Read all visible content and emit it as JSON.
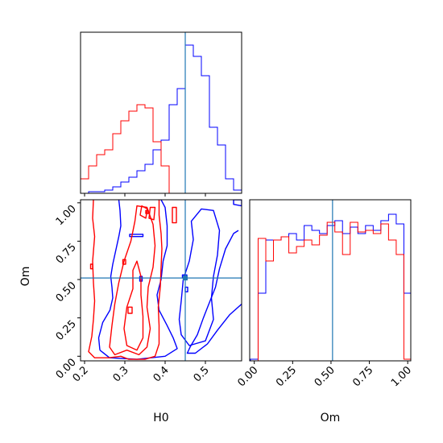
{
  "chart_data": {
    "type": "corner",
    "truth": {
      "H0": 0.45,
      "Om": 0.51
    },
    "colors": {
      "series_a": "#0000ff",
      "series_b": "#ff0000",
      "truth": "#1f77b4"
    },
    "parameters": [
      "H0",
      "Om"
    ],
    "axes": {
      "H0": {
        "xlim": [
          0.19,
          0.59
        ],
        "ticks": [
          0.2,
          0.3,
          0.4,
          0.5
        ],
        "tick_labels": [
          "0.2",
          "0.3",
          "0.4",
          "0.5"
        ],
        "xlabel": "H0"
      },
      "Om": {
        "xlim": [
          -0.03,
          1.02
        ],
        "ticks": [
          0.0,
          0.25,
          0.5,
          0.75,
          1.0
        ],
        "tick_labels": [
          "0.00",
          "0.25",
          "0.50",
          "0.75",
          "1.00"
        ],
        "xlabel": "Om"
      },
      "Om_2d": {
        "ylim": [
          -0.03,
          1.02
        ],
        "ticks": [
          0.0,
          0.25,
          0.5,
          0.75,
          1.0
        ],
        "tick_labels": [
          "0.00",
          "0.25",
          "0.50",
          "0.75",
          "1.00"
        ],
        "ylabel": "Om"
      }
    },
    "hist_H0": {
      "bin_edges": [
        0.19,
        0.21,
        0.23,
        0.25,
        0.27,
        0.29,
        0.31,
        0.33,
        0.35,
        0.37,
        0.39,
        0.41,
        0.43,
        0.45,
        0.47,
        0.49,
        0.51,
        0.53,
        0.55,
        0.57,
        0.59
      ],
      "series": [
        {
          "color": "blue",
          "values": [
            0.0,
            0.01,
            0.01,
            0.02,
            0.04,
            0.07,
            0.1,
            0.14,
            0.18,
            0.27,
            0.33,
            0.55,
            0.65,
            0.92,
            0.85,
            0.73,
            0.41,
            0.3,
            0.09,
            0.02
          ]
        },
        {
          "color": "red",
          "values": [
            0.09,
            0.17,
            0.24,
            0.27,
            0.37,
            0.45,
            0.51,
            0.55,
            0.53,
            0.32,
            0.17,
            0.0,
            0.0,
            0.0,
            0.0,
            0.0,
            0.0,
            0.0,
            0.0,
            0.0
          ]
        }
      ]
    },
    "hist_Om": {
      "bin_edges": [
        -0.025,
        0.025,
        0.075,
        0.125,
        0.175,
        0.225,
        0.275,
        0.325,
        0.375,
        0.425,
        0.475,
        0.525,
        0.575,
        0.625,
        0.675,
        0.725,
        0.775,
        0.825,
        0.875,
        0.925,
        0.975,
        1.025
      ],
      "series": [
        {
          "color": "blue",
          "values": [
            0.01,
            0.42,
            0.75,
            0.75,
            0.77,
            0.79,
            0.75,
            0.84,
            0.81,
            0.79,
            0.84,
            0.87,
            0.79,
            0.83,
            0.79,
            0.84,
            0.81,
            0.87,
            0.91,
            0.85,
            0.42
          ]
        },
        {
          "color": "red",
          "values": [
            0.0,
            0.76,
            0.62,
            0.75,
            0.77,
            0.67,
            0.71,
            0.75,
            0.72,
            0.78,
            0.86,
            0.8,
            0.66,
            0.86,
            0.8,
            0.81,
            0.79,
            0.85,
            0.75,
            0.66,
            0.01
          ]
        }
      ]
    },
    "contours": [
      {
        "color": "blue",
        "lines": [
          {
            "points": [
              [
                0.238,
                0.04
              ],
              [
                0.262,
                -0.01
              ],
              [
                0.33,
                -0.02
              ],
              [
                0.4,
                0.0
              ],
              [
                0.43,
                0.05
              ],
              [
                0.42,
                0.12
              ],
              [
                0.405,
                0.2
              ],
              [
                0.385,
                0.3
              ],
              [
                0.38,
                0.4
              ],
              [
                0.39,
                0.5
              ],
              [
                0.395,
                0.62
              ],
              [
                0.405,
                0.72
              ],
              [
                0.405,
                0.85
              ],
              [
                0.4,
                0.97
              ],
              [
                0.39,
                1.02
              ]
            ],
            "closed": false
          },
          {
            "points": [
              [
                0.285,
                1.02
              ],
              [
                0.288,
                0.95
              ],
              [
                0.29,
                0.85
              ],
              [
                0.285,
                0.78
              ],
              [
                0.28,
                0.72
              ],
              [
                0.27,
                0.6
              ],
              [
                0.265,
                0.52
              ],
              [
                0.268,
                0.45
              ],
              [
                0.27,
                0.38
              ],
              [
                0.263,
                0.3
              ],
              [
                0.245,
                0.22
              ],
              [
                0.235,
                0.12
              ],
              [
                0.238,
                0.04
              ]
            ],
            "closed": false
          },
          {
            "points": [
              [
                0.582,
                0.82
              ],
              [
                0.57,
                0.8
              ],
              [
                0.55,
                0.7
              ],
              [
                0.535,
                0.57
              ],
              [
                0.525,
                0.45
              ],
              [
                0.51,
                0.35
              ],
              [
                0.495,
                0.25
              ],
              [
                0.48,
                0.14
              ],
              [
                0.462,
                0.06
              ],
              [
                0.455,
                0.02
              ],
              [
                0.475,
                0.02
              ],
              [
                0.505,
                0.08
              ],
              [
                0.53,
                0.17
              ],
              [
                0.56,
                0.27
              ],
              [
                0.59,
                0.34
              ]
            ],
            "closed": false
          },
          {
            "points": [
              [
                0.44,
                0.14
              ],
              [
                0.46,
                0.07
              ],
              [
                0.5,
                0.1
              ],
              [
                0.52,
                0.24
              ],
              [
                0.515,
                0.38
              ],
              [
                0.52,
                0.52
              ],
              [
                0.53,
                0.66
              ],
              [
                0.535,
                0.82
              ],
              [
                0.52,
                0.95
              ],
              [
                0.49,
                0.96
              ],
              [
                0.465,
                0.88
              ],
              [
                0.47,
                0.76
              ],
              [
                0.46,
                0.62
              ],
              [
                0.445,
                0.5
              ],
              [
                0.44,
                0.36
              ],
              [
                0.435,
                0.24
              ]
            ],
            "closed": true
          },
          {
            "points": [
              [
                0.57,
                0.99
              ],
              [
                0.59,
                0.98
              ],
              [
                0.59,
                1.02
              ],
              [
                0.57,
                1.02
              ]
            ],
            "closed": true
          },
          {
            "points": [
              [
                0.443,
                0.51
              ],
              [
                0.454,
                0.51
              ],
              [
                0.454,
                0.53
              ],
              [
                0.443,
                0.53
              ]
            ],
            "closed": true
          },
          {
            "points": [
              [
                0.337,
                0.49
              ],
              [
                0.343,
                0.49
              ],
              [
                0.343,
                0.52
              ],
              [
                0.337,
                0.52
              ]
            ],
            "closed": true
          },
          {
            "points": [
              [
                0.45,
                0.42
              ],
              [
                0.456,
                0.42
              ],
              [
                0.456,
                0.45
              ],
              [
                0.45,
                0.45
              ]
            ],
            "closed": true
          },
          {
            "points": [
              [
                0.312,
                0.78
              ],
              [
                0.345,
                0.78
              ],
              [
                0.345,
                0.795
              ],
              [
                0.312,
                0.795
              ]
            ],
            "closed": true
          }
        ]
      },
      {
        "color": "red",
        "lines": [
          {
            "points": [
              [
                0.222,
                1.02
              ],
              [
                0.22,
                0.9
              ],
              [
                0.225,
                0.78
              ],
              [
                0.22,
                0.62
              ],
              [
                0.222,
                0.48
              ],
              [
                0.225,
                0.36
              ],
              [
                0.222,
                0.24
              ],
              [
                0.218,
                0.13
              ],
              [
                0.21,
                0.03
              ],
              [
                0.225,
                -0.01
              ],
              [
                0.26,
                -0.01
              ],
              [
                0.29,
                0.0
              ],
              [
                0.31,
                -0.02
              ],
              [
                0.35,
                -0.02
              ],
              [
                0.375,
                0.0
              ],
              [
                0.385,
                0.08
              ],
              [
                0.385,
                0.2
              ],
              [
                0.383,
                0.32
              ],
              [
                0.388,
                0.45
              ],
              [
                0.39,
                0.58
              ],
              [
                0.392,
                0.7
              ],
              [
                0.39,
                0.8
              ],
              [
                0.385,
                0.92
              ],
              [
                0.385,
                1.02
              ]
            ],
            "closed": false
          },
          {
            "points": [
              [
                0.262,
                0.06
              ],
              [
                0.275,
                0.01
              ],
              [
                0.305,
                0.04
              ],
              [
                0.335,
                0.01
              ],
              [
                0.355,
                0.06
              ],
              [
                0.363,
                0.18
              ],
              [
                0.355,
                0.32
              ],
              [
                0.358,
                0.45
              ],
              [
                0.37,
                0.58
              ],
              [
                0.375,
                0.72
              ],
              [
                0.37,
                0.86
              ],
              [
                0.355,
                0.97
              ],
              [
                0.33,
                0.98
              ],
              [
                0.325,
                0.88
              ],
              [
                0.315,
                0.75
              ],
              [
                0.298,
                0.62
              ],
              [
                0.285,
                0.48
              ],
              [
                0.275,
                0.34
              ],
              [
                0.268,
                0.2
              ]
            ],
            "closed": true
          },
          {
            "points": [
              [
                0.305,
                0.07
              ],
              [
                0.33,
                0.04
              ],
              [
                0.345,
                0.12
              ],
              [
                0.345,
                0.26
              ],
              [
                0.34,
                0.4
              ],
              [
                0.34,
                0.52
              ],
              [
                0.33,
                0.62
              ],
              [
                0.32,
                0.56
              ],
              [
                0.32,
                0.44
              ],
              [
                0.305,
                0.32
              ],
              [
                0.298,
                0.18
              ]
            ],
            "closed": true
          },
          {
            "points": [
              [
                0.338,
                0.92
              ],
              [
                0.352,
                0.9
              ],
              [
                0.356,
                0.96
              ],
              [
                0.342,
                0.98
              ]
            ],
            "closed": true
          },
          {
            "points": [
              [
                0.36,
                0.9
              ],
              [
                0.372,
                0.89
              ],
              [
                0.375,
                0.97
              ],
              [
                0.363,
                0.97
              ]
            ],
            "closed": true
          },
          {
            "points": [
              [
                0.418,
                0.87
              ],
              [
                0.428,
                0.87
              ],
              [
                0.428,
                0.97
              ],
              [
                0.418,
                0.97
              ]
            ],
            "closed": true
          },
          {
            "points": [
              [
                0.295,
                0.6
              ],
              [
                0.302,
                0.6
              ],
              [
                0.302,
                0.63
              ],
              [
                0.295,
                0.63
              ]
            ],
            "closed": true
          },
          {
            "points": [
              [
                0.308,
                0.28
              ],
              [
                0.318,
                0.28
              ],
              [
                0.318,
                0.32
              ],
              [
                0.308,
                0.32
              ]
            ],
            "closed": true
          },
          {
            "points": [
              [
                0.215,
                0.57
              ],
              [
                0.22,
                0.57
              ],
              [
                0.22,
                0.6
              ],
              [
                0.215,
                0.6
              ]
            ],
            "closed": true
          },
          {
            "points": [
              [
                0.352,
                0.93
              ],
              [
                0.358,
                0.93
              ],
              [
                0.358,
                0.95
              ],
              [
                0.352,
                0.95
              ]
            ],
            "closed": true
          }
        ]
      }
    ]
  }
}
